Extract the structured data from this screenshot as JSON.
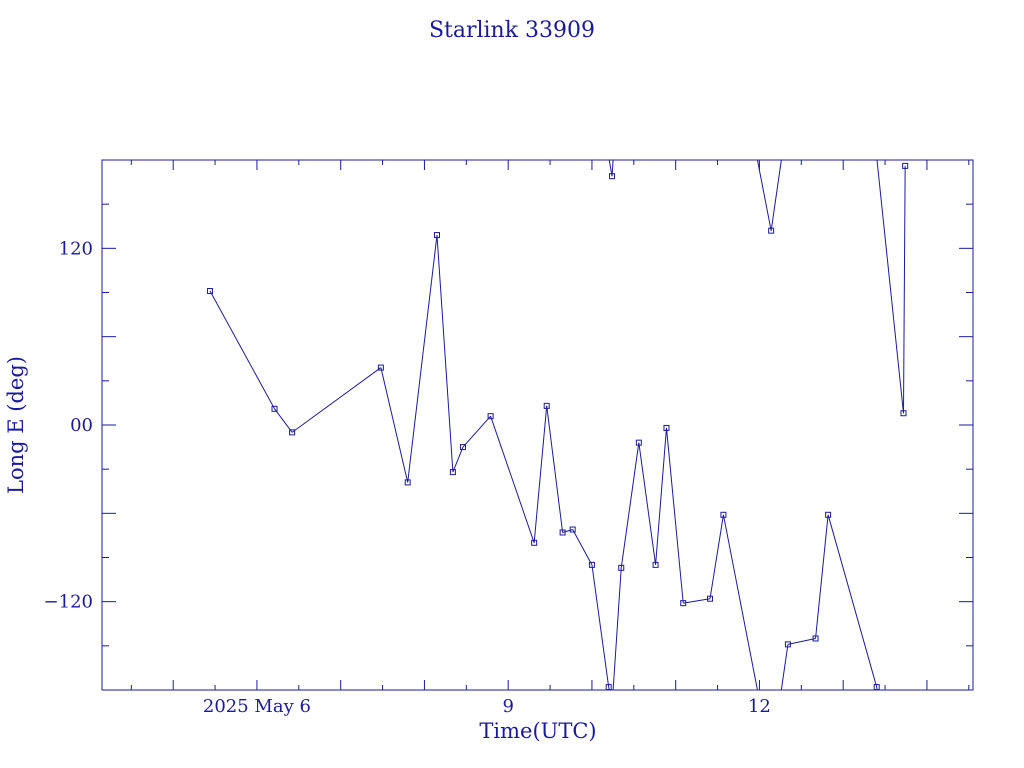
{
  "colors": {
    "ink": "#1a1aa0",
    "background": "#ffffff"
  },
  "chart_data": {
    "type": "line",
    "title": "Starlink 33909",
    "xlabel": "Time(UTC)",
    "ylabel": "Long E (deg)",
    "x_unit": "day of 2025 May",
    "xlim": [
      4.15,
      14.55
    ],
    "ylim": [
      -180,
      180
    ],
    "grid": false,
    "legend": "none",
    "marker": "square",
    "x_ticks": [
      {
        "value": 6,
        "label": "2025 May  6"
      },
      {
        "value": 9,
        "label": "9"
      },
      {
        "value": 12,
        "label": "12"
      }
    ],
    "y_ticks": [
      {
        "value": 120,
        "label": "120"
      },
      {
        "value": 0,
        "label": "00"
      },
      {
        "value": -120,
        "label": "−120"
      }
    ],
    "series": [
      {
        "wrap_at": 180,
        "points": [
          {
            "x": 5.44,
            "y": 91
          },
          {
            "x": 6.21,
            "y": 11
          },
          {
            "x": 6.42,
            "y": -5
          },
          {
            "x": 7.48,
            "y": 39
          },
          {
            "x": 7.8,
            "y": -39
          },
          {
            "x": 8.15,
            "y": 129
          },
          {
            "x": 8.34,
            "y": -32
          },
          {
            "x": 8.46,
            "y": -15
          },
          {
            "x": 8.79,
            "y": 6
          },
          {
            "x": 9.31,
            "y": -80
          },
          {
            "x": 9.46,
            "y": 13
          },
          {
            "x": 9.65,
            "y": -73
          },
          {
            "x": 9.77,
            "y": -71
          },
          {
            "x": 10.0,
            "y": -95
          },
          {
            "x": 10.2,
            "y": -178
          },
          {
            "x": 10.24,
            "y": 169
          },
          {
            "x": 10.35,
            "y": -97
          },
          {
            "x": 10.56,
            "y": -12
          },
          {
            "x": 10.76,
            "y": -95
          },
          {
            "x": 10.89,
            "y": -2
          },
          {
            "x": 11.09,
            "y": -121
          },
          {
            "x": 11.41,
            "y": -118
          },
          {
            "x": 11.57,
            "y": -61
          },
          {
            "x": 12.14,
            "y": 132
          },
          {
            "x": 12.34,
            "y": -149
          },
          {
            "x": 12.67,
            "y": -145
          },
          {
            "x": 12.82,
            "y": -61
          },
          {
            "x": 13.4,
            "y": -178
          },
          {
            "x": 13.72,
            "y": 8
          },
          {
            "x": 13.74,
            "y": 176
          }
        ]
      }
    ]
  }
}
